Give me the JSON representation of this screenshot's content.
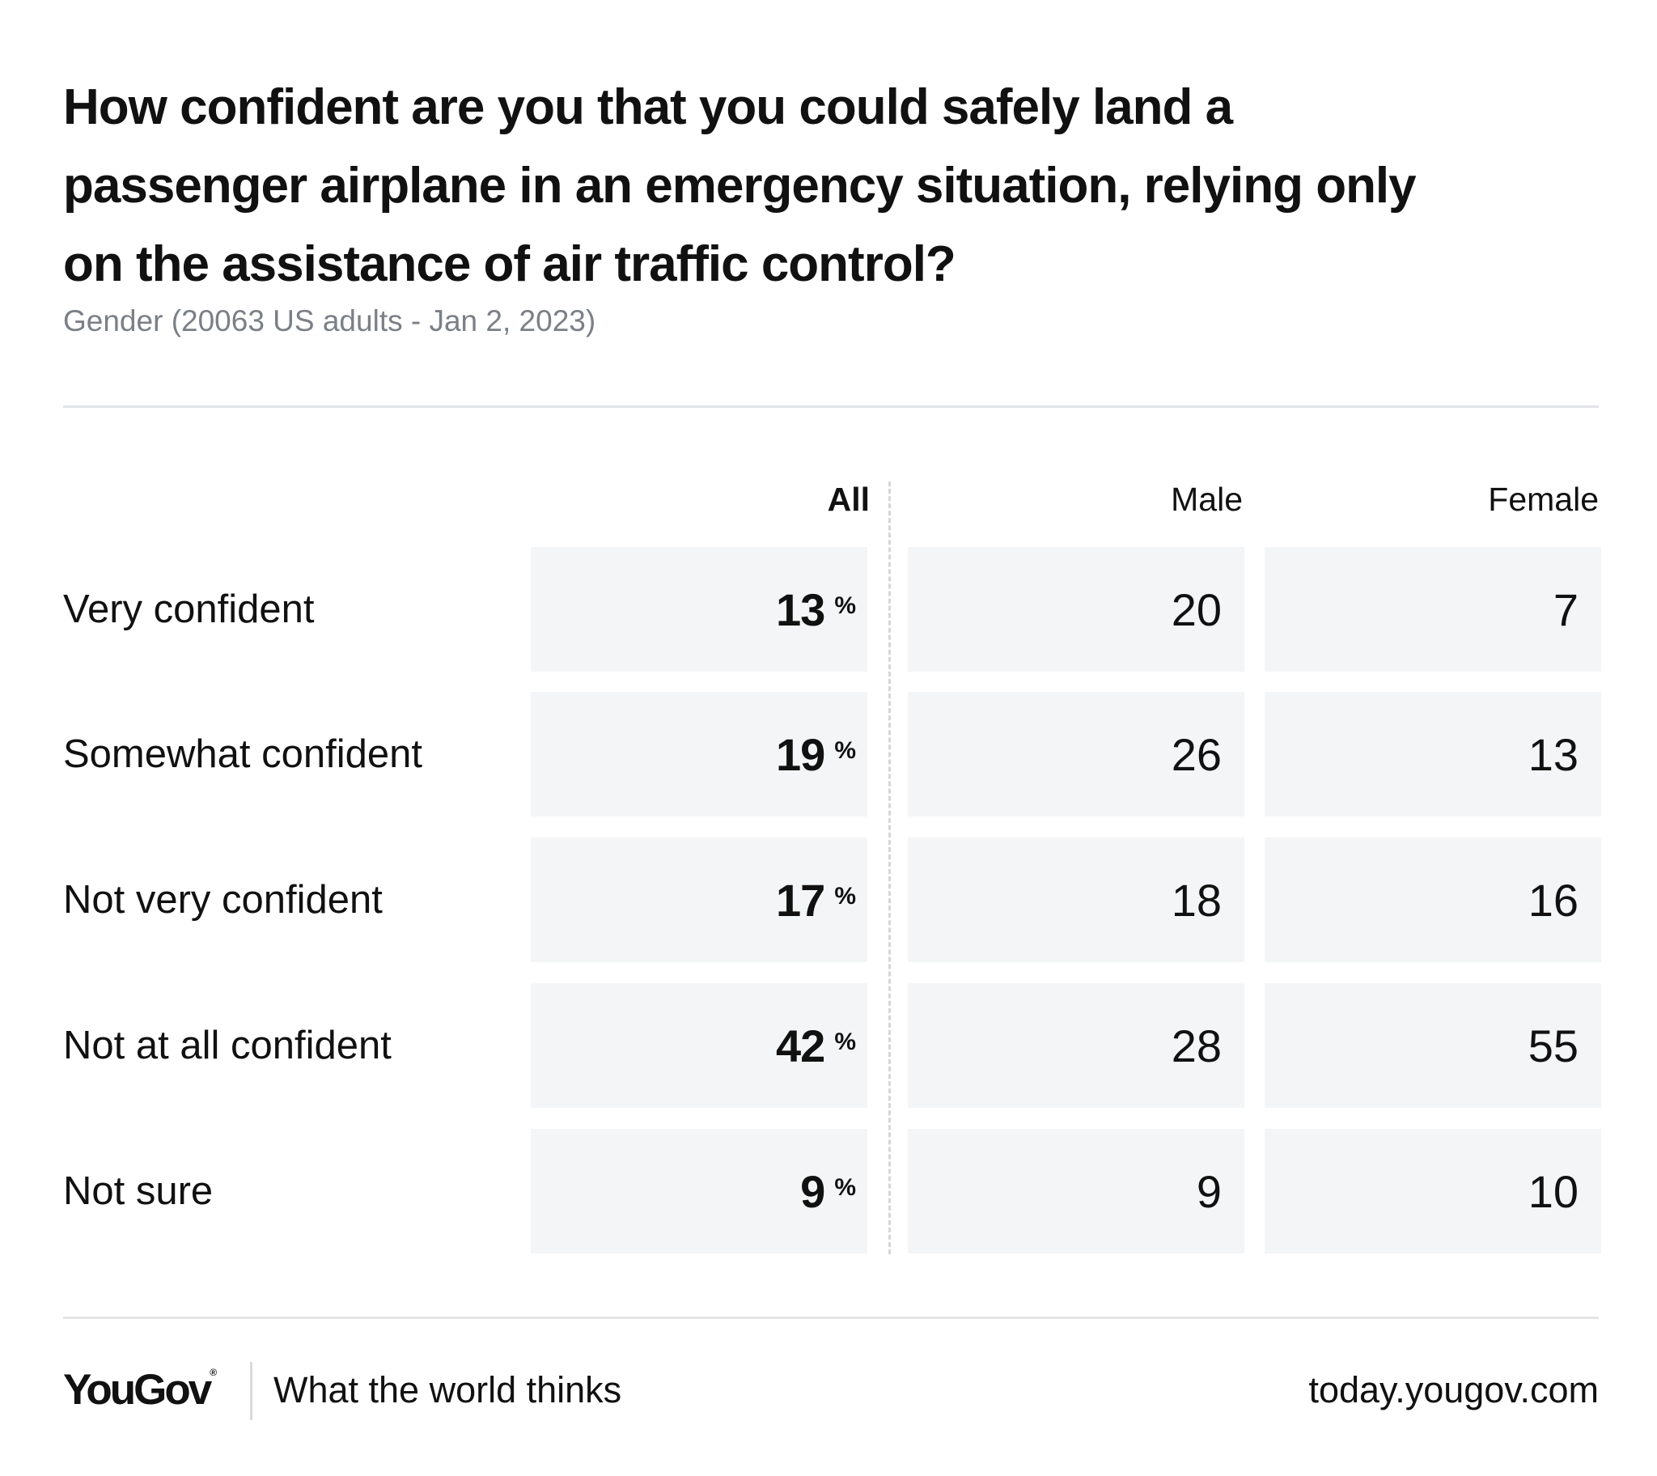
{
  "title_lines": [
    "How confident are you that you could safely land a",
    "passenger airplane in an emergency situation, relying only",
    "on the assistance of air traffic control?"
  ],
  "subtitle": "Gender (20063 US adults - Jan 2, 2023)",
  "footer": {
    "logo_text": "YouGov",
    "logo_mark": "®",
    "tagline": "What the world thinks",
    "site": "today.yougov.com"
  },
  "colors": {
    "text": "#111111",
    "subtitle": "#7b7f86",
    "cell_background": "#f4f5f6",
    "rule": "#e3e4e6"
  },
  "chart_data": {
    "type": "table",
    "title": "How confident are you that you could safely land a passenger airplane in an emergency situation, relying only on the assistance of air traffic control?",
    "subtitle": "Gender (20063 US adults - Jan 2, 2023)",
    "unit_symbol": "%",
    "columns": [
      "All",
      "Male",
      "Female"
    ],
    "rows": [
      {
        "label": "Very confident",
        "values": [
          13,
          20,
          7
        ]
      },
      {
        "label": "Somewhat confident",
        "values": [
          19,
          26,
          13
        ]
      },
      {
        "label": "Not very confident",
        "values": [
          17,
          18,
          16
        ]
      },
      {
        "label": "Not at all confident",
        "values": [
          42,
          28,
          55
        ]
      },
      {
        "label": "Not sure",
        "values": [
          9,
          9,
          10
        ]
      }
    ]
  }
}
